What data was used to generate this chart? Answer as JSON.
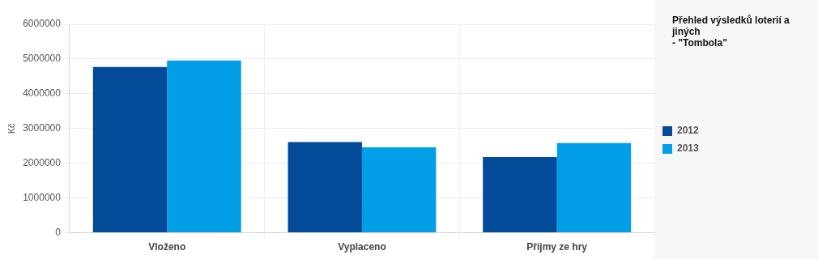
{
  "chart_data": {
    "type": "bar",
    "title": "Přehled výsledků loterií a jiných\n- \"Tombola\"",
    "ylabel": "Kč",
    "categories": [
      "Vloženo",
      "Vyplaceno",
      "Příjmy ze hry"
    ],
    "series": [
      {
        "name": "2012",
        "color": "#034a98",
        "values": [
          4770000,
          2610000,
          2180000
        ]
      },
      {
        "name": "2013",
        "color": "#039ee8",
        "values": [
          4960000,
          2460000,
          2580000
        ]
      }
    ],
    "ylim": [
      0,
      6000000
    ],
    "yticks": [
      0,
      1000000,
      2000000,
      3000000,
      4000000,
      5000000,
      6000000
    ],
    "grid": true,
    "legend": "right"
  }
}
